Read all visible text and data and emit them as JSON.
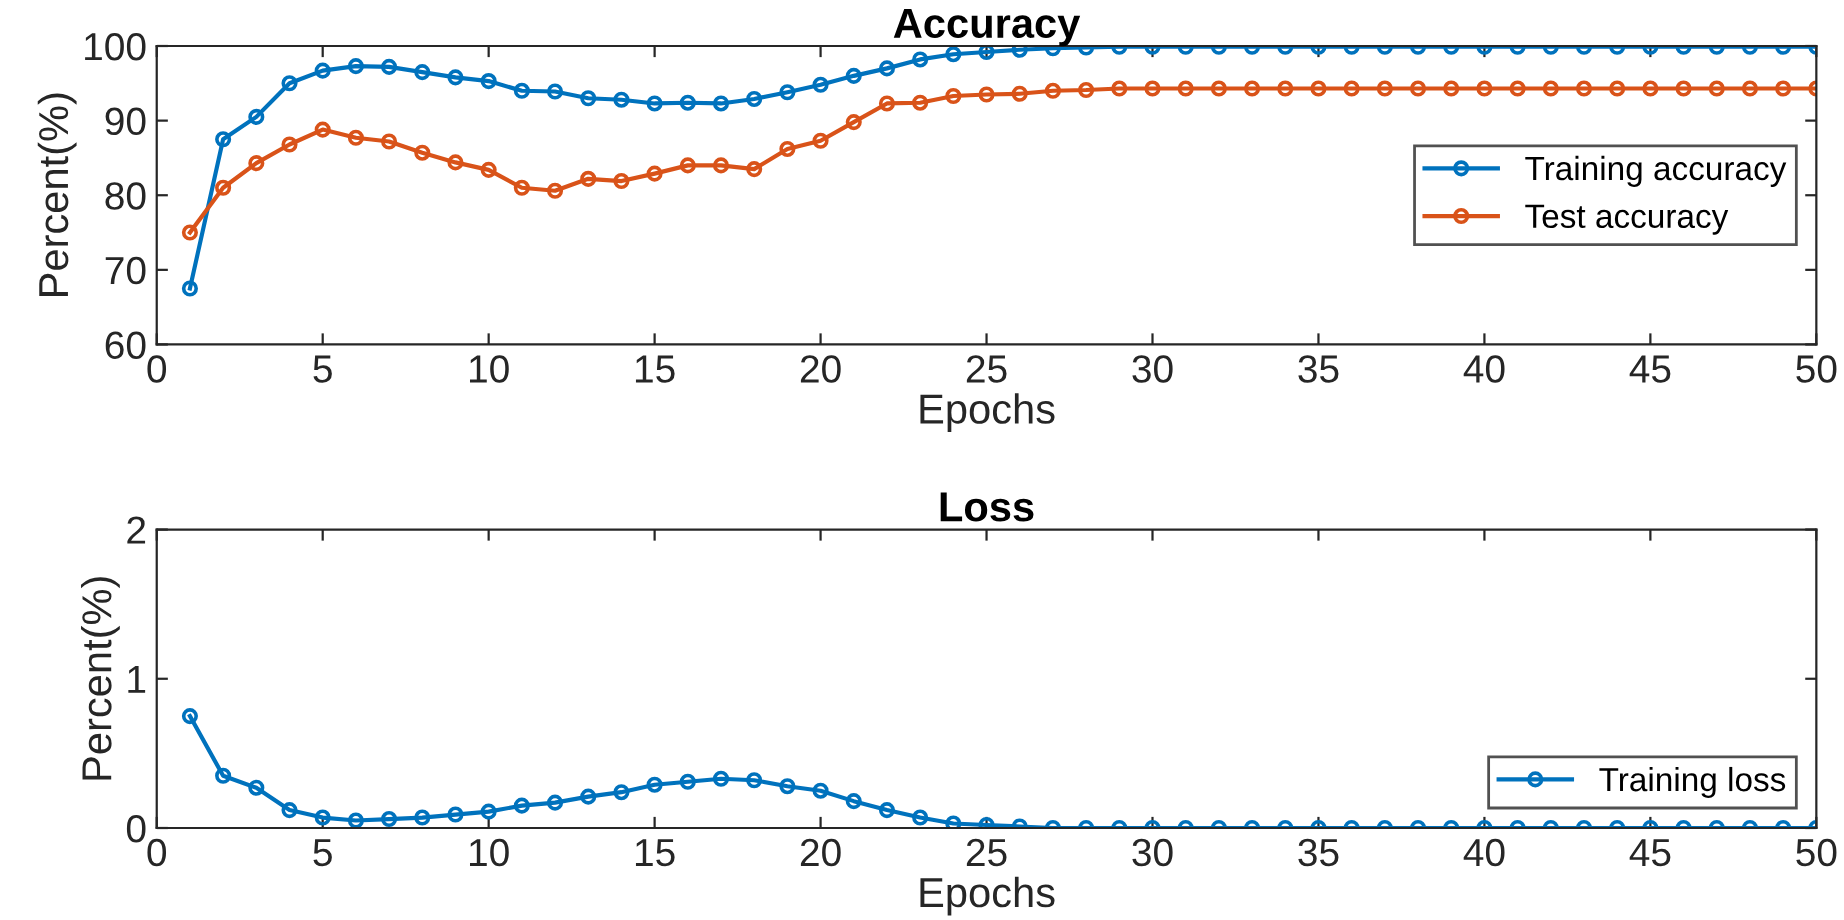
{
  "chart_data": [
    {
      "type": "line",
      "title": "Accuracy",
      "xlabel": "Epochs",
      "ylabel": "Percent(%)",
      "xlim": [
        0,
        50
      ],
      "xticks": [
        0,
        5,
        10,
        15,
        20,
        25,
        30,
        35,
        40,
        45,
        50
      ],
      "ylim": [
        60,
        100
      ],
      "yticks": [
        60,
        70,
        80,
        90,
        100
      ],
      "grid": false,
      "legend": "right",
      "marker": "circle",
      "line_style": "solid",
      "x": [
        1,
        2,
        3,
        4,
        5,
        6,
        7,
        8,
        9,
        10,
        11,
        12,
        13,
        14,
        15,
        16,
        17,
        18,
        19,
        20,
        21,
        22,
        23,
        24,
        25,
        26,
        27,
        28,
        29,
        30,
        31,
        32,
        33,
        34,
        35,
        36,
        37,
        38,
        39,
        40,
        41,
        42,
        43,
        44,
        45,
        46,
        47,
        48,
        49,
        50
      ],
      "series": [
        {
          "name": "Training accuracy",
          "color": "#0072bd",
          "values": [
            67.5,
            87.5,
            90.5,
            95,
            96.7,
            97.3,
            97.2,
            96.5,
            95.8,
            95.3,
            94,
            93.9,
            93,
            92.8,
            92.3,
            92.4,
            92.3,
            92.9,
            93.8,
            94.8,
            96,
            97,
            98.2,
            98.9,
            99.2,
            99.5,
            99.7,
            99.8,
            99.9,
            99.9,
            99.9,
            99.9,
            99.9,
            99.9,
            99.9,
            99.9,
            99.9,
            99.9,
            99.9,
            99.9,
            99.9,
            99.9,
            99.9,
            99.9,
            99.9,
            99.9,
            99.9,
            99.9,
            99.9,
            99.9
          ]
        },
        {
          "name": "Test accuracy",
          "color": "#d95319",
          "values": [
            75,
            81,
            84.3,
            86.8,
            88.8,
            87.7,
            87.2,
            85.7,
            84.4,
            83.4,
            81,
            80.6,
            82.2,
            81.9,
            82.9,
            84,
            84,
            83.5,
            86.2,
            87.3,
            89.8,
            92.3,
            92.4,
            93.3,
            93.5,
            93.6,
            94,
            94.1,
            94.3,
            94.3,
            94.3,
            94.3,
            94.3,
            94.3,
            94.3,
            94.3,
            94.3,
            94.3,
            94.3,
            94.3,
            94.3,
            94.3,
            94.3,
            94.3,
            94.3,
            94.3,
            94.3,
            94.3,
            94.3,
            94.3
          ]
        }
      ]
    },
    {
      "type": "line",
      "title": "Loss",
      "xlabel": "Epochs",
      "ylabel": "Percent(%)",
      "xlim": [
        0,
        50
      ],
      "xticks": [
        0,
        5,
        10,
        15,
        20,
        25,
        30,
        35,
        40,
        45,
        50
      ],
      "ylim": [
        0,
        2
      ],
      "yticks": [
        0,
        1,
        2
      ],
      "grid": false,
      "legend": "bottom right",
      "marker": "circle",
      "line_style": "solid",
      "x": [
        1,
        2,
        3,
        4,
        5,
        6,
        7,
        8,
        9,
        10,
        11,
        12,
        13,
        14,
        15,
        16,
        17,
        18,
        19,
        20,
        21,
        22,
        23,
        24,
        25,
        26,
        27,
        28,
        29,
        30,
        31,
        32,
        33,
        34,
        35,
        36,
        37,
        38,
        39,
        40,
        41,
        42,
        43,
        44,
        45,
        46,
        47,
        48,
        49,
        50
      ],
      "series": [
        {
          "name": "Training loss",
          "color": "#0072bd",
          "values": [
            0.75,
            0.35,
            0.27,
            0.12,
            0.07,
            0.05,
            0.06,
            0.07,
            0.09,
            0.11,
            0.15,
            0.17,
            0.21,
            0.24,
            0.29,
            0.31,
            0.33,
            0.32,
            0.28,
            0.25,
            0.18,
            0.12,
            0.07,
            0.03,
            0.02,
            0.01,
            0,
            0,
            0,
            0,
            0,
            0,
            0,
            0,
            0,
            0,
            0,
            0,
            0,
            0,
            0,
            0,
            0,
            0,
            0,
            0,
            0,
            0,
            0,
            0
          ]
        }
      ]
    }
  ]
}
